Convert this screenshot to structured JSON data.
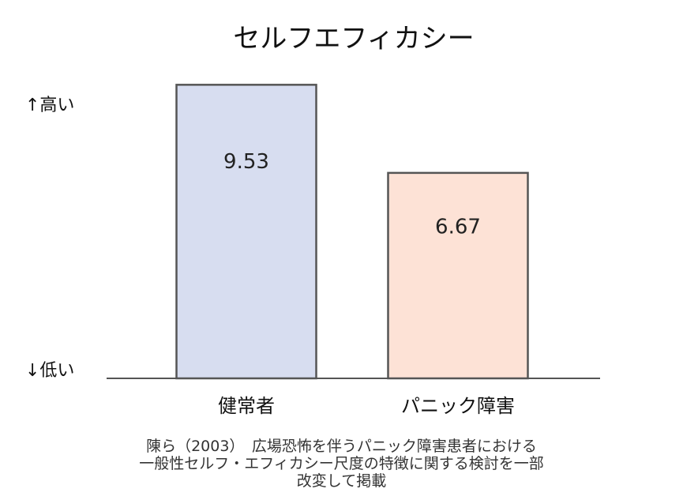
{
  "chart_data": {
    "type": "bar",
    "title": "セルフエフィカシー",
    "categories": [
      "健常者",
      "パニック障害"
    ],
    "values": [
      9.53,
      6.67
    ],
    "value_labels": [
      "9.53",
      "6.67"
    ],
    "ylabel_top": "↑高い",
    "ylabel_bottom": "↓低い",
    "ylim": [
      0,
      10
    ],
    "grid": false,
    "legend": "none",
    "colors": {
      "bar_fills": [
        "#d7ddf0",
        "#fde2d6"
      ],
      "bar_stroke": "#555555",
      "axis": "#555555"
    }
  },
  "citation": {
    "lines": [
      "陳ら（2003）　広場恐怖を伴うパニック障害患者における",
      "一般性セルフ・エフィカシー尺度の特徴に関する検討を一部",
      "改変して掲載"
    ]
  }
}
